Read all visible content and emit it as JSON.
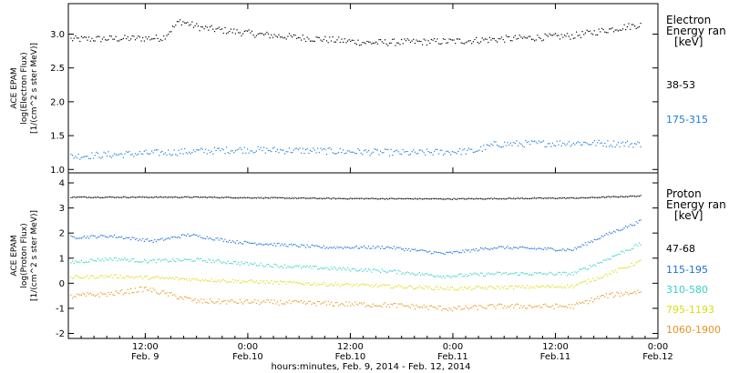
{
  "chart_data": [
    {
      "type": "scatter",
      "panel": "electron",
      "ylabel_lines": [
        "ACE  EPAM",
        "log(Electron Flux)",
        "[1/(cm^2 s ster MeV)]"
      ],
      "ylim": [
        0.95,
        3.45
      ],
      "yticks": [
        1.0,
        1.5,
        2.0,
        2.5,
        3.0
      ],
      "ytick_labels": [
        "1.0",
        "1.5",
        "2.0",
        "2.5",
        "3.0"
      ],
      "legend_title": [
        "Electron",
        "Energy ran",
        "[keV]"
      ],
      "series": [
        {
          "name": "38-53",
          "color": "#000000",
          "base": 2.95,
          "noise": 0.05,
          "knots": [
            [
              0,
              2.93
            ],
            [
              22,
              2.95
            ],
            [
              26,
              3.2
            ],
            [
              31,
              3.1
            ],
            [
              45,
              3.0
            ],
            [
              70,
              2.88
            ],
            [
              90,
              2.9
            ],
            [
              100,
              2.93
            ],
            [
              118,
              2.98
            ],
            [
              127,
              3.08
            ],
            [
              134,
              3.15
            ]
          ]
        },
        {
          "name": "175-315",
          "color": "#1a7fd6",
          "base": 1.25,
          "noise": 0.05,
          "knots": [
            [
              0,
              1.2
            ],
            [
              20,
              1.25
            ],
            [
              40,
              1.3
            ],
            [
              60,
              1.28
            ],
            [
              80,
              1.25
            ],
            [
              95,
              1.28
            ],
            [
              100,
              1.38
            ],
            [
              120,
              1.4
            ],
            [
              134,
              1.38
            ]
          ]
        }
      ]
    },
    {
      "type": "scatter",
      "panel": "proton",
      "ylabel_lines": [
        "ACE  EPAM",
        "log(Proton Flux)",
        "[1/(cm^2 s ster MeV)]"
      ],
      "ylim": [
        -2.2,
        4.4
      ],
      "yticks": [
        -2,
        -1,
        0,
        1,
        2,
        3,
        4
      ],
      "ytick_labels": [
        "-2",
        "-1",
        "0",
        "1",
        "2",
        "3",
        "4"
      ],
      "legend_title": [
        "Proton",
        "Energy ran",
        "[keV]"
      ],
      "series": [
        {
          "name": "47-68",
          "color": "#000000",
          "base": 3.4,
          "noise": 0.02,
          "knots": [
            [
              0,
              3.45
            ],
            [
              30,
              3.45
            ],
            [
              60,
              3.4
            ],
            [
              90,
              3.38
            ],
            [
              120,
              3.42
            ],
            [
              134,
              3.5
            ]
          ]
        },
        {
          "name": "115-195",
          "color": "#1e6fd9",
          "base": 1.6,
          "noise": 0.06,
          "knots": [
            [
              0,
              1.85
            ],
            [
              10,
              1.9
            ],
            [
              20,
              1.7
            ],
            [
              28,
              1.95
            ],
            [
              40,
              1.65
            ],
            [
              60,
              1.45
            ],
            [
              75,
              1.45
            ],
            [
              88,
              1.2
            ],
            [
              100,
              1.45
            ],
            [
              118,
              1.35
            ],
            [
              125,
              1.9
            ],
            [
              134,
              2.5
            ]
          ]
        },
        {
          "name": "310-580",
          "color": "#34d4c4",
          "base": 0.8,
          "noise": 0.07,
          "knots": [
            [
              0,
              0.85
            ],
            [
              10,
              1.0
            ],
            [
              18,
              0.9
            ],
            [
              30,
              0.95
            ],
            [
              50,
              0.7
            ],
            [
              75,
              0.5
            ],
            [
              88,
              0.3
            ],
            [
              100,
              0.4
            ],
            [
              118,
              0.4
            ],
            [
              125,
              0.9
            ],
            [
              134,
              1.6
            ]
          ]
        },
        {
          "name": "795-1193",
          "color": "#d9dd10",
          "base": 0.2,
          "noise": 0.07,
          "knots": [
            [
              0,
              0.25
            ],
            [
              10,
              0.3
            ],
            [
              18,
              0.25
            ],
            [
              40,
              0.1
            ],
            [
              75,
              -0.1
            ],
            [
              90,
              -0.2
            ],
            [
              100,
              -0.15
            ],
            [
              118,
              -0.1
            ],
            [
              125,
              0.3
            ],
            [
              134,
              0.9
            ]
          ]
        },
        {
          "name": "1060-1900",
          "color": "#e69520",
          "base": -0.5,
          "noise": 0.1,
          "knots": [
            [
              0,
              -0.5
            ],
            [
              10,
              -0.4
            ],
            [
              18,
              -0.2
            ],
            [
              30,
              -0.7
            ],
            [
              50,
              -0.75
            ],
            [
              75,
              -0.85
            ],
            [
              90,
              -1.0
            ],
            [
              100,
              -0.9
            ],
            [
              118,
              -0.9
            ],
            [
              125,
              -0.5
            ],
            [
              134,
              -0.3
            ]
          ]
        }
      ]
    }
  ],
  "x_axis": {
    "xlim": [
      0,
      138
    ],
    "ticks": [
      {
        "x": 18,
        "label": [
          "12:00",
          "Feb. 9"
        ]
      },
      {
        "x": 42,
        "label": [
          "0:00",
          "Feb.10"
        ]
      },
      {
        "x": 66,
        "label": [
          "12:00",
          "Feb.10"
        ]
      },
      {
        "x": 90,
        "label": [
          "0:00",
          "Feb.11"
        ]
      },
      {
        "x": 114,
        "label": [
          "12:00",
          "Feb.11"
        ]
      },
      {
        "x": 138,
        "label": [
          "0:00",
          "Feb.12"
        ]
      }
    ],
    "xlabel": "hours:minutes, Feb.  9, 2014 - Feb. 12, 2014"
  }
}
